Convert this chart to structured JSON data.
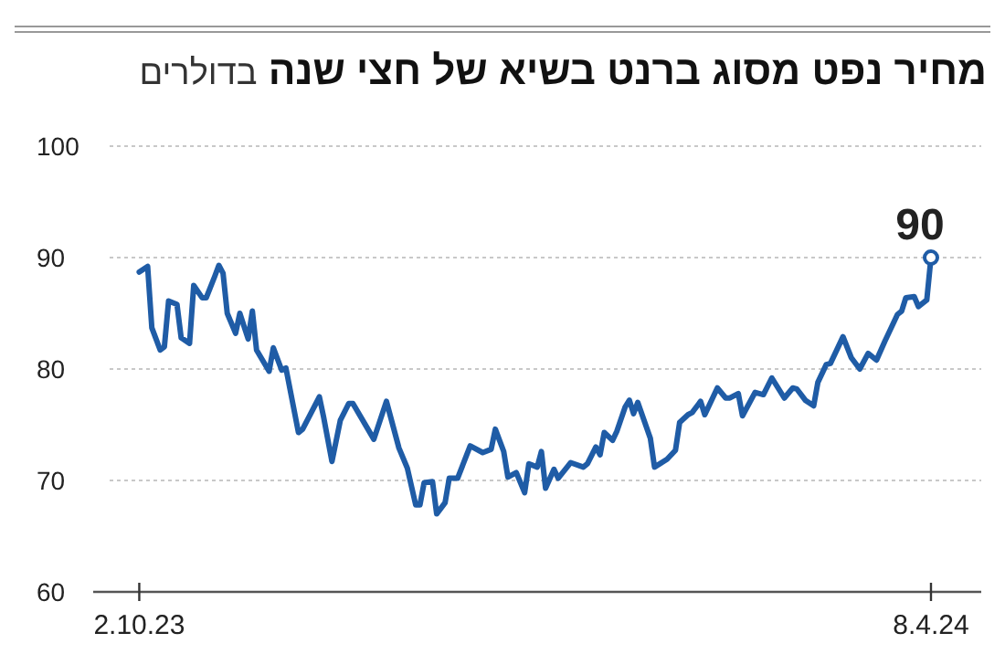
{
  "chart_data": {
    "type": "line",
    "title": "מחיר נפט מסוג ברנט בשיא של חצי שנה",
    "subtitle": "בדולרים",
    "x": [
      "2023-10-02",
      "2023-10-04",
      "2023-10-05",
      "2023-10-07",
      "2023-10-08",
      "2023-10-09",
      "2023-10-11",
      "2023-10-12",
      "2023-10-14",
      "2023-10-15",
      "2023-10-17",
      "2023-10-18",
      "2023-10-20",
      "2023-10-21",
      "2023-10-22",
      "2023-10-23",
      "2023-10-25",
      "2023-10-26",
      "2023-10-28",
      "2023-10-29",
      "2023-10-30",
      "2023-11-02",
      "2023-11-03",
      "2023-11-05",
      "2023-11-06",
      "2023-11-09",
      "2023-11-10",
      "2023-11-14",
      "2023-11-15",
      "2023-11-17",
      "2023-11-19",
      "2023-11-21",
      "2023-11-22",
      "2023-11-27",
      "2023-11-30",
      "2023-12-03",
      "2023-12-05",
      "2023-12-07",
      "2023-12-08",
      "2023-12-09",
      "2023-12-11",
      "2023-12-12",
      "2023-12-14",
      "2023-12-15",
      "2023-12-17",
      "2023-12-20",
      "2023-12-23",
      "2023-12-25",
      "2023-12-26",
      "2023-12-28",
      "2023-12-29",
      "2023-12-31",
      "2024-01-02",
      "2024-01-03",
      "2024-01-05",
      "2024-01-06",
      "2024-01-07",
      "2024-01-09",
      "2024-01-10",
      "2024-01-13",
      "2024-01-16",
      "2024-01-17",
      "2024-01-19",
      "2024-01-20",
      "2024-01-21",
      "2024-01-23",
      "2024-01-24",
      "2024-01-26",
      "2024-01-27",
      "2024-01-28",
      "2024-01-29",
      "2024-02-01",
      "2024-02-02",
      "2024-02-05",
      "2024-02-07",
      "2024-02-08",
      "2024-02-10",
      "2024-02-11",
      "2024-02-13",
      "2024-02-14",
      "2024-02-17",
      "2024-02-19",
      "2024-02-20",
      "2024-02-22",
      "2024-02-23",
      "2024-02-26",
      "2024-02-28",
      "2024-03-01",
      "2024-03-04",
      "2024-03-06",
      "2024-03-07",
      "2024-03-09",
      "2024-03-11",
      "2024-03-12",
      "2024-03-14",
      "2024-03-15",
      "2024-03-17",
      "2024-03-18",
      "2024-03-20",
      "2024-03-22",
      "2024-03-24",
      "2024-03-26",
      "2024-03-28",
      "2024-03-29",
      "2024-03-31",
      "2024-04-01",
      "2024-04-02",
      "2024-04-04",
      "2024-04-05",
      "2024-04-07",
      "2024-04-08"
    ],
    "series": [
      {
        "color": "#1f5ca6",
        "values": [
          88.7,
          89.2,
          83.7,
          81.7,
          82,
          86.1,
          85.8,
          82.8,
          82.3,
          87.5,
          86.4,
          86.4,
          88.3,
          89.3,
          88.6,
          85,
          83.2,
          85,
          82.7,
          85.2,
          81.7,
          79.8,
          81.9,
          79.9,
          80.1,
          74.3,
          74.6,
          77.5,
          75.7,
          71.7,
          75.4,
          76.9,
          76.9,
          73.7,
          77.1,
          72.9,
          71.1,
          67.8,
          67.8,
          69.8,
          69.9,
          67,
          68,
          70.2,
          70.2,
          73.1,
          72.5,
          72.8,
          74.6,
          72.6,
          70.3,
          70.7,
          68.9,
          71.5,
          71.2,
          72.6,
          69.3,
          71,
          70.2,
          71.6,
          71.2,
          71.5,
          73,
          72.3,
          74.3,
          73.6,
          74.4,
          76.6,
          77.2,
          76,
          77,
          73.8,
          71.2,
          71.9,
          72.7,
          75.2,
          75.9,
          76.1,
          77.1,
          75.9,
          78.3,
          77.4,
          77.4,
          77.8,
          75.8,
          77.9,
          77.7,
          79.2,
          77.4,
          78.3,
          78.2,
          77.2,
          76.7,
          78.8,
          80.4,
          80.5,
          82.1,
          82.9,
          81,
          80,
          81.4,
          80.8,
          82.5,
          83.3,
          84.9,
          85.2,
          86.4,
          86.5,
          85.6,
          86.2,
          90
        ],
        "value_labels": [
          null,
          null,
          null,
          null,
          null,
          null,
          null,
          null,
          null,
          null,
          null,
          null,
          null,
          null,
          null,
          null,
          null,
          null,
          null,
          null,
          null,
          null,
          null,
          null,
          null,
          null,
          null,
          null,
          null,
          null,
          null,
          null,
          null,
          null,
          null,
          null,
          null,
          null,
          null,
          null,
          null,
          null,
          null,
          null,
          null,
          null,
          null,
          null,
          null,
          null,
          null,
          null,
          null,
          null,
          null,
          null,
          null,
          null,
          null,
          null,
          null,
          null,
          null,
          null,
          null,
          null,
          null,
          null,
          null,
          null,
          null,
          null,
          null,
          null,
          null,
          null,
          null,
          null,
          null,
          null,
          null,
          null,
          null,
          null,
          null,
          null,
          null,
          null,
          null,
          null,
          null,
          null,
          null,
          null,
          null,
          null,
          null,
          null,
          null,
          null,
          null,
          null,
          null,
          null,
          null,
          null,
          null,
          null,
          null,
          null,
          "90"
        ]
      }
    ],
    "xlim": [
      "2023-09-21",
      "2024-04-20"
    ],
    "xticks": [
      {
        "value": "2023-10-02",
        "label": "2.10.23"
      },
      {
        "value": "2024-04-08",
        "label": "8.4.24"
      }
    ],
    "ylim": [
      60,
      100
    ],
    "yticks": [
      60,
      70,
      80,
      90,
      100
    ],
    "grid": "y",
    "marker": "none",
    "line_style": "solid"
  }
}
